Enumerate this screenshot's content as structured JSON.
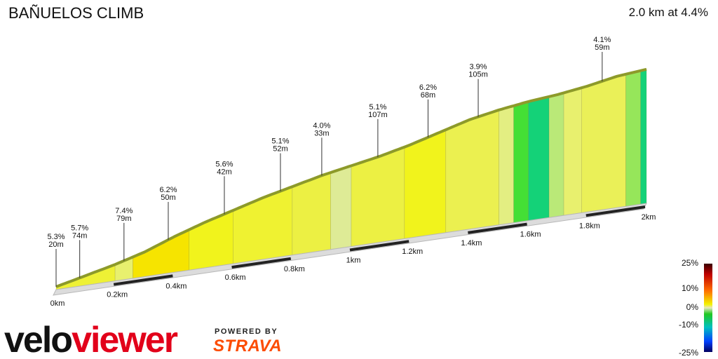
{
  "title": "BAÑUELOS CLIMB",
  "summary": "2.0 km at 4.4%",
  "branding": {
    "logo_prefix": "velo",
    "logo_suffix": "viewer",
    "powered_by": "POWERED BY",
    "partner": "STRAVA"
  },
  "legend": {
    "labels": [
      "25%",
      "10%",
      "0%",
      "-10%",
      "-25%"
    ]
  },
  "chart_data": {
    "type": "area",
    "xlabel": "",
    "ylabel": "",
    "x_ticks": [
      "0km",
      "0.2km",
      "0.4km",
      "0.6km",
      "0.8km",
      "1km",
      "1.2km",
      "1.4km",
      "1.6km",
      "1.8km",
      "2km"
    ],
    "profile_km": [
      0,
      0.1,
      0.2,
      0.3,
      0.4,
      0.5,
      0.6,
      0.7,
      0.8,
      0.9,
      1.0,
      1.1,
      1.2,
      1.3,
      1.4,
      1.5,
      1.6,
      1.7,
      1.8,
      1.9,
      2.0
    ],
    "profile_elevation_m": [
      0,
      5,
      10,
      16,
      24,
      31,
      37,
      43,
      48,
      53,
      57,
      61,
      66,
      72,
      78,
      82,
      85,
      87,
      90,
      94,
      96
    ],
    "segments": [
      {
        "gradient": "5.3%",
        "distance": "20m",
        "at_km": 0.0
      },
      {
        "gradient": "5.7%",
        "distance": "74m",
        "at_km": 0.08
      },
      {
        "gradient": "7.4%",
        "distance": "79m",
        "at_km": 0.23
      },
      {
        "gradient": "6.2%",
        "distance": "50m",
        "at_km": 0.38
      },
      {
        "gradient": "5.6%",
        "distance": "42m",
        "at_km": 0.57
      },
      {
        "gradient": "5.1%",
        "distance": "52m",
        "at_km": 0.76
      },
      {
        "gradient": "4.0%",
        "distance": "33m",
        "at_km": 0.9
      },
      {
        "gradient": "5.1%",
        "distance": "107m",
        "at_km": 1.09
      },
      {
        "gradient": "6.2%",
        "distance": "68m",
        "at_km": 1.26
      },
      {
        "gradient": "3.9%",
        "distance": "105m",
        "at_km": 1.43
      },
      {
        "gradient": "4.1%",
        "distance": "59m",
        "at_km": 1.85
      }
    ],
    "bands": [
      {
        "from_km": 0.0,
        "to_km": 0.2,
        "gradient": 5.5
      },
      {
        "from_km": 0.2,
        "to_km": 0.26,
        "gradient": 3.0
      },
      {
        "from_km": 0.26,
        "to_km": 0.45,
        "gradient": 7.4
      },
      {
        "from_km": 0.45,
        "to_km": 0.6,
        "gradient": 6.2
      },
      {
        "from_km": 0.6,
        "to_km": 0.8,
        "gradient": 5.6
      },
      {
        "from_km": 0.8,
        "to_km": 0.93,
        "gradient": 5.1
      },
      {
        "from_km": 0.93,
        "to_km": 1.0,
        "gradient": 2.0
      },
      {
        "from_km": 1.0,
        "to_km": 1.18,
        "gradient": 5.1
      },
      {
        "from_km": 1.18,
        "to_km": 1.32,
        "gradient": 6.2
      },
      {
        "from_km": 1.32,
        "to_km": 1.5,
        "gradient": 4.5
      },
      {
        "from_km": 1.5,
        "to_km": 1.55,
        "gradient": 2.5
      },
      {
        "from_km": 1.55,
        "to_km": 1.6,
        "gradient": -0.5
      },
      {
        "from_km": 1.6,
        "to_km": 1.67,
        "gradient": -2.0
      },
      {
        "from_km": 1.67,
        "to_km": 1.72,
        "gradient": 1.5
      },
      {
        "from_km": 1.72,
        "to_km": 1.78,
        "gradient": 3.0
      },
      {
        "from_km": 1.78,
        "to_km": 1.93,
        "gradient": 4.1
      },
      {
        "from_km": 1.93,
        "to_km": 1.98,
        "gradient": 1.0
      },
      {
        "from_km": 1.98,
        "to_km": 2.0,
        "gradient": -2.0
      }
    ],
    "gradient_scale": {
      "min": -25,
      "max": 25
    },
    "grid": false,
    "legend": "bottom-right"
  }
}
